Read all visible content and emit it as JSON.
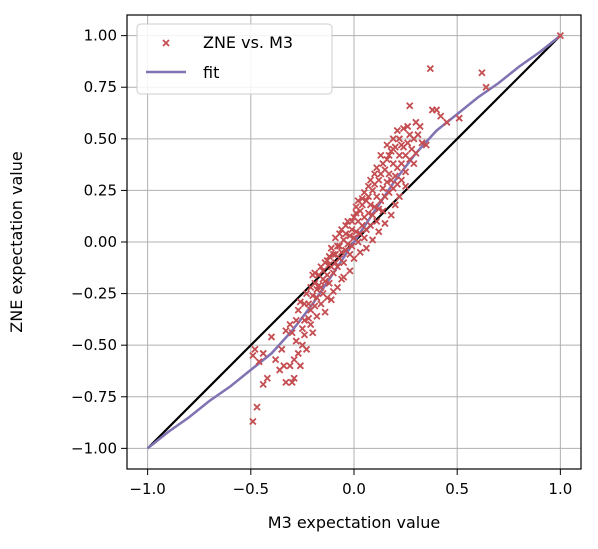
{
  "chart_data": {
    "type": "scatter",
    "xlabel": "M3 expectation value",
    "ylabel": "ZNE expectation value",
    "xlim": [
      -1.1,
      1.1
    ],
    "ylim": [
      -1.1,
      1.1
    ],
    "xticks": [
      -1.0,
      -0.5,
      0.0,
      0.5,
      1.0
    ],
    "xtick_labels": [
      "−1.0",
      "−0.5",
      "0.0",
      "0.5",
      "1.0"
    ],
    "yticks": [
      -1.0,
      -0.75,
      -0.5,
      -0.25,
      0.0,
      0.25,
      0.5,
      0.75,
      1.0
    ],
    "ytick_labels": [
      "−1.00",
      "−0.75",
      "−0.50",
      "−0.25",
      "0.00",
      "0.25",
      "0.50",
      "0.75",
      "1.00"
    ],
    "grid": true,
    "legend": {
      "position": "top-left",
      "entries": [
        "ZNE vs. M3",
        "fit"
      ]
    },
    "series": [
      {
        "name": "ZNE vs. M3",
        "kind": "scatter",
        "marker": "x",
        "color": "#c44e52",
        "points": [
          [
            -0.49,
            -0.87
          ],
          [
            -0.47,
            -0.8
          ],
          [
            -0.49,
            -0.55
          ],
          [
            -0.48,
            -0.52
          ],
          [
            -0.46,
            -0.58
          ],
          [
            -0.44,
            -0.54
          ],
          [
            -0.4,
            -0.46
          ],
          [
            -0.38,
            -0.57
          ],
          [
            -0.36,
            -0.62
          ],
          [
            -0.34,
            -0.6
          ],
          [
            -0.33,
            -0.68
          ],
          [
            -0.3,
            -0.68
          ],
          [
            -0.29,
            -0.66
          ],
          [
            -0.31,
            -0.4
          ],
          [
            -0.33,
            -0.43
          ],
          [
            -0.3,
            -0.44
          ],
          [
            -0.28,
            -0.38
          ],
          [
            -0.27,
            -0.33
          ],
          [
            -0.28,
            -0.48
          ],
          [
            -0.25,
            -0.5
          ],
          [
            -0.24,
            -0.45
          ],
          [
            -0.26,
            -0.29
          ],
          [
            -0.24,
            -0.3
          ],
          [
            -0.23,
            -0.25
          ],
          [
            -0.22,
            -0.37
          ],
          [
            -0.21,
            -0.4
          ],
          [
            -0.22,
            -0.3
          ],
          [
            -0.21,
            -0.22
          ],
          [
            -0.2,
            -0.26
          ],
          [
            -0.19,
            -0.2
          ],
          [
            -0.19,
            -0.31
          ],
          [
            -0.18,
            -0.27
          ],
          [
            -0.18,
            -0.36
          ],
          [
            -0.17,
            -0.21
          ],
          [
            -0.17,
            -0.16
          ],
          [
            -0.16,
            -0.3
          ],
          [
            -0.16,
            -0.22
          ],
          [
            -0.15,
            -0.14
          ],
          [
            -0.15,
            -0.25
          ],
          [
            -0.14,
            -0.19
          ],
          [
            -0.14,
            -0.1
          ],
          [
            -0.13,
            -0.27
          ],
          [
            -0.13,
            -0.16
          ],
          [
            -0.12,
            -0.07
          ],
          [
            -0.12,
            -0.2
          ],
          [
            -0.11,
            -0.12
          ],
          [
            -0.11,
            -0.03
          ],
          [
            -0.1,
            -0.15
          ],
          [
            -0.1,
            -0.06
          ],
          [
            -0.09,
            -0.1
          ],
          [
            -0.09,
            0.02
          ],
          [
            -0.08,
            -0.12
          ],
          [
            -0.08,
            -0.02
          ],
          [
            -0.07,
            -0.08
          ],
          [
            -0.07,
            0.04
          ],
          [
            -0.06,
            -0.05
          ],
          [
            -0.06,
            0.06
          ],
          [
            -0.05,
            -0.1
          ],
          [
            -0.05,
            0.01
          ],
          [
            -0.04,
            -0.04
          ],
          [
            -0.04,
            0.08
          ],
          [
            -0.03,
            -0.01
          ],
          [
            -0.03,
            0.1
          ],
          [
            -0.02,
            -0.06
          ],
          [
            -0.02,
            0.03
          ],
          [
            -0.01,
            0.06
          ],
          [
            -0.01,
            -0.02
          ],
          [
            0.0,
            0.02
          ],
          [
            0.0,
            0.12
          ],
          [
            0.0,
            -0.08
          ],
          [
            0.01,
            0.05
          ],
          [
            0.01,
            0.14
          ],
          [
            0.02,
            0.0
          ],
          [
            0.02,
            0.1
          ],
          [
            0.03,
            0.04
          ],
          [
            0.03,
            0.15
          ],
          [
            0.04,
            0.08
          ],
          [
            0.04,
            0.18
          ],
          [
            0.05,
            0.02
          ],
          [
            0.05,
            0.12
          ],
          [
            0.06,
            0.06
          ],
          [
            0.06,
            0.2
          ],
          [
            0.07,
            0.14
          ],
          [
            0.07,
            0.22
          ],
          [
            0.08,
            0.08
          ],
          [
            0.08,
            0.18
          ],
          [
            0.09,
            0.13
          ],
          [
            0.09,
            0.25
          ],
          [
            0.1,
            0.17
          ],
          [
            0.1,
            0.28
          ],
          [
            0.11,
            0.1
          ],
          [
            0.11,
            0.22
          ],
          [
            0.12,
            0.16
          ],
          [
            0.12,
            0.3
          ],
          [
            0.13,
            0.2
          ],
          [
            0.13,
            0.33
          ],
          [
            0.14,
            0.15
          ],
          [
            0.14,
            0.26
          ],
          [
            0.15,
            0.22
          ],
          [
            0.15,
            0.35
          ],
          [
            0.16,
            0.29
          ],
          [
            0.16,
            0.4
          ],
          [
            0.17,
            0.24
          ],
          [
            0.17,
            0.33
          ],
          [
            0.18,
            0.3
          ],
          [
            0.18,
            0.44
          ],
          [
            0.19,
            0.26
          ],
          [
            0.19,
            0.38
          ],
          [
            0.2,
            0.32
          ],
          [
            0.2,
            0.46
          ],
          [
            0.21,
            0.36
          ],
          [
            0.21,
            0.28
          ],
          [
            0.22,
            0.42
          ],
          [
            0.22,
            0.5
          ],
          [
            0.23,
            0.38
          ],
          [
            0.23,
            0.3
          ],
          [
            0.24,
            0.46
          ],
          [
            0.25,
            0.42
          ],
          [
            0.25,
            0.34
          ],
          [
            0.26,
            0.48
          ],
          [
            0.27,
            0.4
          ],
          [
            0.28,
            0.45
          ],
          [
            0.29,
            0.38
          ],
          [
            0.3,
            0.43
          ],
          [
            0.31,
            0.52
          ],
          [
            0.33,
            0.48
          ],
          [
            0.35,
            0.47
          ],
          [
            0.37,
            0.84
          ],
          [
            0.38,
            0.64
          ],
          [
            0.4,
            0.64
          ],
          [
            0.42,
            0.61
          ],
          [
            0.45,
            0.58
          ],
          [
            0.27,
            0.66
          ],
          [
            0.3,
            0.58
          ],
          [
            0.26,
            0.56
          ],
          [
            0.32,
            0.56
          ],
          [
            0.62,
            0.82
          ],
          [
            0.64,
            0.75
          ],
          [
            0.51,
            0.6
          ],
          [
            1.0,
            1.0
          ],
          [
            -0.44,
            -0.69
          ],
          [
            -0.42,
            -0.66
          ],
          [
            -0.35,
            -0.52
          ],
          [
            -0.26,
            -0.6
          ],
          [
            0.19,
            0.5
          ],
          [
            0.21,
            0.54
          ],
          [
            0.24,
            0.55
          ],
          [
            0.16,
            0.47
          ],
          [
            0.13,
            0.42
          ],
          [
            0.11,
            0.36
          ],
          [
            -0.2,
            -0.44
          ],
          [
            -0.23,
            -0.52
          ],
          [
            -0.14,
            -0.34
          ],
          [
            -0.11,
            -0.28
          ],
          [
            -0.08,
            -0.22
          ],
          [
            -0.05,
            -0.17
          ],
          [
            0.08,
            0.3
          ],
          [
            0.05,
            0.24
          ],
          [
            0.02,
            0.2
          ],
          [
            0.03,
            -0.05
          ],
          [
            0.06,
            -0.03
          ],
          [
            0.09,
            0.01
          ],
          [
            0.12,
            0.05
          ],
          [
            0.15,
            0.09
          ],
          [
            0.18,
            0.13
          ],
          [
            0.2,
            0.18
          ],
          [
            0.22,
            0.22
          ],
          [
            0.25,
            0.27
          ],
          [
            -0.02,
            -0.14
          ],
          [
            -0.06,
            -0.18
          ],
          [
            -0.1,
            -0.24
          ],
          [
            -0.13,
            -0.09
          ],
          [
            -0.16,
            -0.12
          ],
          [
            -0.19,
            -0.15
          ],
          [
            -0.25,
            -0.42
          ],
          [
            -0.27,
            -0.54
          ],
          [
            -0.29,
            -0.57
          ],
          [
            -0.31,
            -0.6
          ],
          [
            -0.24,
            -0.38
          ],
          [
            -0.21,
            -0.33
          ],
          [
            0.17,
            0.42
          ],
          [
            0.19,
            0.45
          ],
          [
            0.23,
            0.47
          ],
          [
            0.27,
            0.52
          ],
          [
            0.29,
            0.5
          ],
          [
            0.14,
            0.38
          ],
          [
            0.1,
            0.33
          ],
          [
            0.07,
            0.27
          ],
          [
            0.04,
            0.21
          ],
          [
            0.01,
            0.17
          ],
          [
            -0.01,
            0.1
          ],
          [
            -0.04,
            0.04
          ],
          [
            -0.07,
            -0.02
          ],
          [
            -0.09,
            -0.06
          ],
          [
            -0.12,
            -0.11
          ],
          [
            -0.15,
            -0.18
          ],
          [
            -0.18,
            -0.23
          ],
          [
            -0.2,
            -0.16
          ]
        ]
      },
      {
        "name": "fit",
        "kind": "line",
        "color": "#8172b2",
        "x": [
          -1.0,
          -0.9,
          -0.8,
          -0.7,
          -0.6,
          -0.5,
          -0.4,
          -0.3,
          -0.2,
          -0.1,
          0.0,
          0.1,
          0.2,
          0.3,
          0.4,
          0.5,
          0.6,
          0.7,
          0.8,
          0.9,
          1.0
        ],
        "y": [
          -1.0,
          -0.92,
          -0.85,
          -0.77,
          -0.7,
          -0.62,
          -0.54,
          -0.43,
          -0.3,
          -0.15,
          0.0,
          0.15,
          0.3,
          0.43,
          0.54,
          0.62,
          0.7,
          0.77,
          0.85,
          0.92,
          1.0
        ]
      },
      {
        "kind": "line",
        "color": "#000000",
        "x": [
          -1.0,
          1.0
        ],
        "y": [
          -1.0,
          1.0
        ]
      }
    ]
  }
}
